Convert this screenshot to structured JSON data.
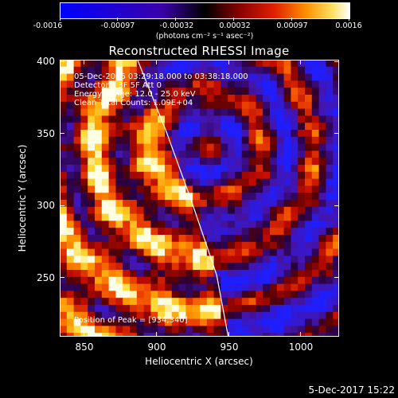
{
  "colorbar": {
    "tick_labels": [
      "-0.0016",
      "-0.00097",
      "-0.00032",
      "0.00032",
      "0.00097",
      "0.0016"
    ],
    "units": "(photons cm⁻² s⁻¹ asec⁻²)",
    "colors": [
      "#0000ff",
      "#1a1aff",
      "#000000",
      "#660000",
      "#cc0000",
      "#ff6600",
      "#ffcc00",
      "#ffff99",
      "#ffffff"
    ]
  },
  "title": "Reconstructed RHESSI Image",
  "info": {
    "line1": "05-Dec-2016 03:29:18.000 to 03:38:18.000",
    "line2": "Detectors: 3F 5F  Att 0",
    "line3": "Energy Range: 12.0 - 25.0 keV",
    "line4": "Clean    Total Counts: 1.09E+04",
    "peak": "Position of Peak = [934,340]"
  },
  "axes": {
    "ylabel": "Heliocentric Y (arcsec)",
    "xlabel": "Heliocentric X (arcsec)",
    "ytick_labels": [
      "400",
      "350",
      "300",
      "250"
    ],
    "xtick_labels": [
      "850",
      "900",
      "950",
      "1000"
    ]
  },
  "chart_data": {
    "type": "heatmap",
    "title": "Reconstructed RHESSI Image",
    "xlabel": "Heliocentric X (arcsec)",
    "ylabel": "Heliocentric Y (arcsec)",
    "xlim": [
      833,
      1027
    ],
    "ylim": [
      207,
      400
    ],
    "x_ticks": [
      850,
      900,
      950,
      1000
    ],
    "y_ticks": [
      250,
      300,
      350,
      400
    ],
    "color_range": [
      -0.0016,
      0.0016
    ],
    "peak_position": [
      934,
      340
    ],
    "limb_curve": [
      [
        887,
        400
      ],
      [
        907,
        350
      ],
      [
        925,
        300
      ],
      [
        942,
        250
      ],
      [
        950,
        207
      ]
    ]
  },
  "footer": {
    "timestamp": "5-Dec-2017 15:22"
  }
}
